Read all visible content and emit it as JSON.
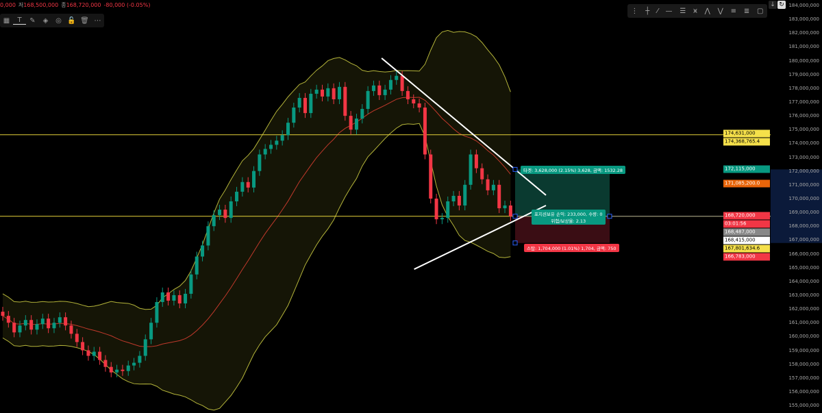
{
  "header": {
    "open_partial": "0,000",
    "low_label": "저",
    "low": "168,500,000",
    "close_label": "종",
    "close": "168,720,000",
    "change": "-80,000 (-0.05%)"
  },
  "toolbar_left": [
    {
      "icon": "layout-icon",
      "g": "▦"
    },
    {
      "icon": "text-icon",
      "g": "T"
    },
    {
      "icon": "brush-icon",
      "g": "✎"
    },
    {
      "icon": "fill-icon",
      "g": "◈"
    },
    {
      "icon": "eye-icon",
      "g": "◎"
    },
    {
      "icon": "lock-icon",
      "g": "🔓"
    },
    {
      "icon": "trash-icon",
      "g": "🗑"
    },
    {
      "icon": "more-icon",
      "g": "⋯"
    }
  ],
  "toolbar_right": [
    {
      "icon": "drag-handle-icon",
      "g": "⋮"
    },
    {
      "icon": "crosshair-icon",
      "g": "┼"
    },
    {
      "icon": "trend-line-icon",
      "g": "⁄"
    },
    {
      "icon": "horizontal-line-icon",
      "g": "—"
    },
    {
      "icon": "parallel-channel-icon",
      "g": "☰"
    },
    {
      "icon": "pattern-icon",
      "g": "⩙"
    },
    {
      "icon": "xabcd-icon",
      "g": "⋀"
    },
    {
      "icon": "elliott-wave-icon",
      "g": "⋁"
    },
    {
      "icon": "long-position-icon",
      "g": "≡"
    },
    {
      "icon": "short-position-icon",
      "g": "≣"
    },
    {
      "icon": "rectangle-icon",
      "g": "▢"
    }
  ],
  "corner_buttons": [
    {
      "icon": "arrow-down-icon",
      "g": "↓"
    },
    {
      "icon": "refresh-icon",
      "g": "↻"
    }
  ],
  "colors": {
    "up": "#089981",
    "down": "#f23645",
    "band": "#b5b53a",
    "ma": "#c0392b",
    "hline": "#e6d33a",
    "target": "#0a3a30",
    "stop": "#3a0d14"
  },
  "chart_data": {
    "type": "candlestick",
    "ylim": [
      155000000,
      184000000
    ],
    "yticks": [
      "184,000,000",
      "183,000,000",
      "182,000,000",
      "181,000,000",
      "180,000,000",
      "179,000,000",
      "178,000,000",
      "177,000,000",
      "176,000,000",
      "175,000,000",
      "174,000,000",
      "173,000,000",
      "172,000,000",
      "171,000,000",
      "170,000,000",
      "169,000,000",
      "168,000,000",
      "167,000,000",
      "166,000,000",
      "165,000,000",
      "164,000,000",
      "163,000,000",
      "162,000,000",
      "161,000,000",
      "160,000,000",
      "159,000,000",
      "158,000,000",
      "157,000,000",
      "156,000,000",
      "155,000,000"
    ],
    "first_open": 161.8,
    "close_millions": [
      161.5,
      161.0,
      160.3,
      160.8,
      161.2,
      160.5,
      160.9,
      161.3,
      160.6,
      161.0,
      161.4,
      160.8,
      160.2,
      159.6,
      159.0,
      158.6,
      158.9,
      158.3,
      157.8,
      157.4,
      157.6,
      157.5,
      157.9,
      158.1,
      158.6,
      159.8,
      161.0,
      162.5,
      163.2,
      162.6,
      163.0,
      162.4,
      163.1,
      164.5,
      165.8,
      166.6,
      168.0,
      168.8,
      169.2,
      168.6,
      169.8,
      170.5,
      171.2,
      170.8,
      172.0,
      173.2,
      173.6,
      173.9,
      174.2,
      174.6,
      175.5,
      176.6,
      177.3,
      176.2,
      177.6,
      177.9,
      177.4,
      178.0,
      177.2,
      178.1,
      176.0,
      175.0,
      175.8,
      176.5,
      177.8,
      178.2,
      177.5,
      177.9,
      178.6,
      178.9,
      177.8,
      177.2,
      176.9,
      176.6,
      173.2,
      170.0,
      168.5,
      168.6,
      169.8,
      170.2,
      169.5,
      171.0,
      173.2,
      172.2,
      171.4,
      170.6,
      171.0,
      169.3,
      169.5,
      168.72
    ],
    "indicators": [
      "Bollinger Bands (20, 2)",
      "Moving Average (20)"
    ],
    "hlines": [
      174631000,
      168720000
    ],
    "trendlines": [
      {
        "from": [
          66.4,
          180.18
        ],
        "to": [
          95.2,
          170.25
        ]
      },
      {
        "from": [
          72.1,
          164.88
        ],
        "to": [
          95.2,
          169.5
        ]
      }
    ],
    "position": {
      "entry": 168720000,
      "target": 172115000,
      "stop": 166783000,
      "target_label": "타겟: 3,628,000 (2.15%) 3,628, 금액: 1532.28",
      "mid_label_1": "포지션보유 손익: 233,000, 수량: 0",
      "mid_label_2": "위험/보상율: 2.13",
      "stop_label": "스탑: 1,704,000 (1.01%) 1,704, 금액: 750"
    },
    "price_tags": [
      {
        "text": "174,631,000",
        "price": 174.72,
        "bg": "#f5e04a",
        "fg": "#000"
      },
      {
        "text": "174,368,765.4",
        "price": 174.3,
        "bg": "#f5e04a",
        "fg": "#000"
      },
      {
        "text": "172,115,000",
        "price": 172.115,
        "bg": "#089981",
        "fg": "#fff"
      },
      {
        "text": "171,085,200.0",
        "price": 171.085,
        "bg": "#e8650a",
        "fg": "#fff"
      },
      {
        "text": "168,720,000",
        "price": 168.78,
        "bg": "#f23645",
        "fg": "#fff"
      },
      {
        "text": "03:01:56",
        "price": 168.35,
        "bg": "#f23645",
        "fg": "#fff"
      },
      {
        "text": "168,487,000",
        "price": 167.87,
        "bg": "#888",
        "fg": "#fff"
      },
      {
        "text": "168,415,000",
        "price": 167.45,
        "bg": "#fff",
        "fg": "#000"
      },
      {
        "text": "167,801,634.6",
        "price": 167.0,
        "bg": "#f5e04a",
        "fg": "#000"
      },
      {
        "text": "166,783,000",
        "price": 166.55,
        "bg": "#f23645",
        "fg": "#fff"
      }
    ]
  }
}
